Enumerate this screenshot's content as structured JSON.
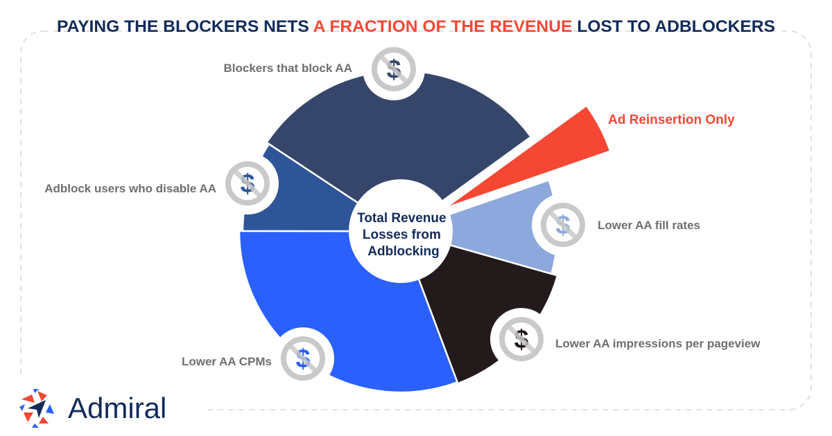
{
  "title": {
    "part1": "PAYING THE BLOCKERS NETS ",
    "part2": "A FRACTION OF THE REVENUE",
    "part3": " LOST TO ADBLOCKERS",
    "color_main": "#132a5a",
    "color_accent": "#f44834"
  },
  "chart_data": {
    "type": "pie",
    "title": "PAYING THE BLOCKERS NETS A FRACTION OF THE REVENUE LOST TO ADBLOCKERS",
    "center_label": [
      "Total Revenue",
      "Losses from",
      "Adblocking"
    ],
    "slices": [
      {
        "label": "Blockers that block AA",
        "value": 30.7,
        "color": "#36466b",
        "icon": "no-dollar-icon"
      },
      {
        "label": "Ad Reinsertion Only",
        "value": 4.7,
        "color": "#f44834",
        "exploded": true,
        "highlight": true
      },
      {
        "label": "Lower AA fill rates",
        "value": 9.7,
        "color": "#8ca8dc",
        "icon": "no-dollar-icon"
      },
      {
        "label": "Lower AA impressions per pageview",
        "value": 14.9,
        "color": "#231a1b",
        "icon": "no-dollar-icon"
      },
      {
        "label": "Lower AA CPMs",
        "value": 30.7,
        "color": "#2b60fd",
        "icon": "no-dollar-icon"
      },
      {
        "label": "Adblock users who disable AA",
        "value": 9.3,
        "color": "#2e5597",
        "icon": "no-dollar-icon"
      }
    ]
  },
  "logo": {
    "text": "Admiral",
    "color": "#132a5a"
  }
}
